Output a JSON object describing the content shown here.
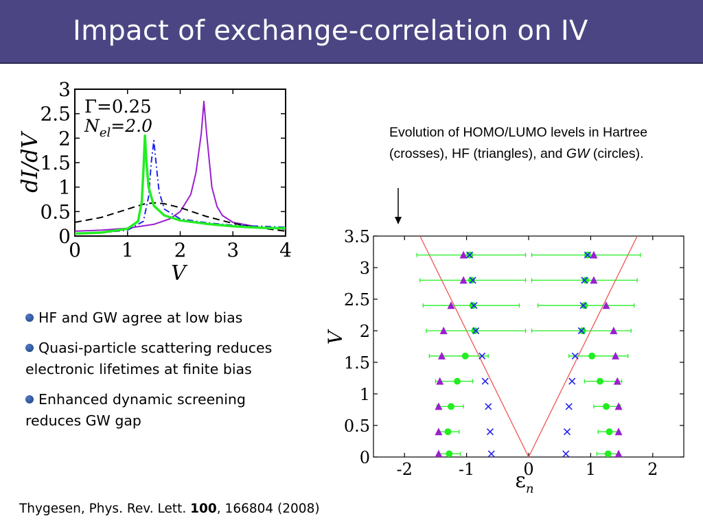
{
  "title": "Impact of exchange-correlation on IV",
  "caption": {
    "part1": "Evolution of HOMO/LUMO levels in Hartree (crosses), HF (triangles), and ",
    "gw": "GW",
    "part2": " (circles)."
  },
  "bullets": [
    "HF and GW agree at low bias",
    "Quasi-particle scattering reduces electronic lifetimes at finite bias",
    "Enhanced dynamic screening reduces GW gap"
  ],
  "footer": {
    "prefix": "Thygesen, Phys. Rev. Lett. ",
    "volume": "100",
    "suffix": ", 166804 (2008)"
  },
  "colors": {
    "title_bg": "#4b4683",
    "green": "#22ee22",
    "purple": "#9a1fcf",
    "blue": "#2222ee",
    "red": "#ee5555",
    "black_dash": "#000000"
  },
  "chart_data": [
    {
      "type": "line",
      "title": "",
      "xlabel": "V",
      "ylabel": "dI/dV",
      "xlim": [
        0,
        4
      ],
      "ylim": [
        0,
        3
      ],
      "xticks": [
        "0",
        "1",
        "2",
        "3",
        "4"
      ],
      "yticks": [
        "0",
        "0.5",
        "1",
        "1.5",
        "2",
        "2.5",
        "3"
      ],
      "annotations": [
        "Γ=0.25",
        "N_el=2.0"
      ],
      "series": [
        {
          "style": "solid-purple",
          "x": [
            0,
            0.5,
            1.0,
            1.5,
            1.8,
            2.0,
            2.2,
            2.3,
            2.4,
            2.45,
            2.5,
            2.6,
            2.7,
            2.8,
            3.0,
            3.5,
            4.0
          ],
          "y": [
            0.1,
            0.12,
            0.16,
            0.24,
            0.35,
            0.5,
            0.85,
            1.3,
            2.1,
            2.75,
            2.1,
            1.0,
            0.6,
            0.42,
            0.28,
            0.18,
            0.14
          ]
        },
        {
          "style": "dashed-black",
          "x": [
            0,
            0.5,
            1.0,
            1.3,
            1.5,
            1.7,
            2.0,
            2.5,
            3.0,
            3.5,
            4.0
          ],
          "y": [
            0.28,
            0.38,
            0.55,
            0.65,
            0.68,
            0.66,
            0.58,
            0.4,
            0.26,
            0.17,
            0.1
          ]
        },
        {
          "style": "dashdot-blue",
          "x": [
            0,
            0.5,
            1.0,
            1.3,
            1.4,
            1.45,
            1.5,
            1.55,
            1.6,
            1.7,
            2.0,
            2.5,
            3.0,
            3.5,
            4.0
          ],
          "y": [
            0.05,
            0.07,
            0.12,
            0.3,
            0.8,
            1.5,
            1.95,
            1.4,
            0.9,
            0.55,
            0.35,
            0.27,
            0.22,
            0.2,
            0.18
          ]
        },
        {
          "style": "solid-green",
          "x": [
            0,
            0.5,
            1.0,
            1.2,
            1.27,
            1.3,
            1.33,
            1.36,
            1.4,
            1.5,
            1.7,
            2.0,
            2.5,
            3.0,
            3.5,
            4.0
          ],
          "y": [
            0.05,
            0.07,
            0.15,
            0.3,
            0.7,
            1.3,
            2.05,
            1.5,
            1.0,
            0.62,
            0.42,
            0.32,
            0.25,
            0.2,
            0.17,
            0.16
          ]
        }
      ]
    },
    {
      "type": "scatter",
      "title": "",
      "xlabel": "ε_n",
      "ylabel": "V",
      "xlim": [
        -2.5,
        2.5
      ],
      "ylim": [
        0,
        3.5
      ],
      "xticks": [
        "-2",
        "-1",
        "0",
        "1",
        "2"
      ],
      "yticks": [
        "0",
        "0.5",
        "1",
        "1.5",
        "2",
        "2.5",
        "3",
        "3.5"
      ],
      "red_lines": [
        {
          "x": [
            0,
            -1.75
          ],
          "y": [
            0,
            3.5
          ]
        },
        {
          "x": [
            0,
            1.75
          ],
          "y": [
            0,
            3.5
          ]
        }
      ],
      "V": [
        0.05,
        0.4,
        0.8,
        1.2,
        1.6,
        2.0,
        2.4,
        2.8,
        3.2
      ],
      "hartree_homo": [
        -0.6,
        -0.62,
        -0.65,
        -0.7,
        -0.75,
        -0.85,
        -0.88,
        -0.9,
        -0.95
      ],
      "hartree_lumo": [
        0.6,
        0.62,
        0.65,
        0.7,
        0.75,
        0.85,
        0.88,
        0.9,
        0.95
      ],
      "hf_homo": [
        -1.45,
        -1.45,
        -1.45,
        -1.43,
        -1.4,
        -1.37,
        -1.25,
        -1.05,
        -1.05
      ],
      "hf_lumo": [
        1.45,
        1.45,
        1.45,
        1.43,
        1.4,
        1.37,
        1.25,
        1.05,
        1.05
      ],
      "gw_homo": [
        -1.28,
        -1.3,
        -1.25,
        -1.15,
        -1.02,
        -0.87,
        -0.9,
        -0.92,
        -0.95
      ],
      "gw_lumo": [
        1.28,
        1.3,
        1.25,
        1.15,
        1.02,
        0.87,
        0.9,
        0.92,
        0.95
      ],
      "gw_err_left_homo": [
        -1.45,
        -1.45,
        -1.48,
        -1.5,
        -1.6,
        -1.65,
        -1.7,
        -1.75,
        -1.8
      ],
      "gw_err_right_homo": [
        -1.1,
        -1.12,
        -1.05,
        -0.9,
        -0.65,
        -0.05,
        -0.15,
        -0.05,
        -0.05
      ],
      "gw_err_left_lumo": [
        1.1,
        1.12,
        1.05,
        0.9,
        0.65,
        0.05,
        0.15,
        0.05,
        0.05
      ],
      "gw_err_right_lumo": [
        1.45,
        1.45,
        1.48,
        1.5,
        1.6,
        1.65,
        1.7,
        1.75,
        1.8
      ]
    }
  ]
}
